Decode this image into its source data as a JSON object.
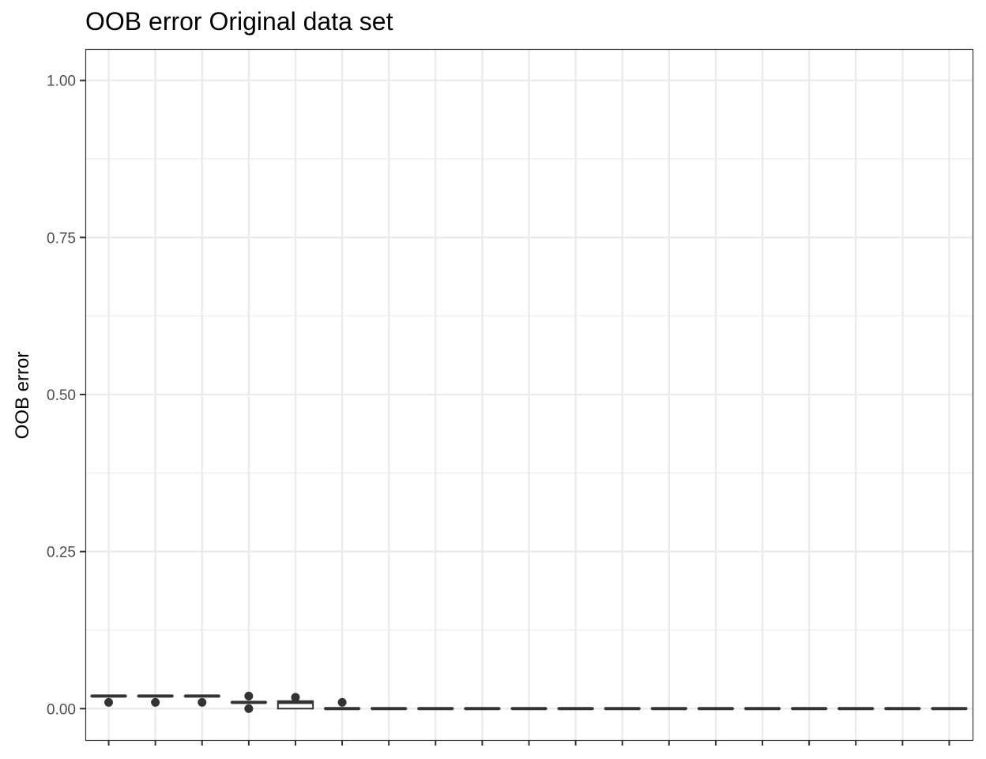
{
  "chart_data": {
    "type": "boxplot",
    "title": "OOB error Original data set",
    "xlabel": "",
    "ylabel": "OOB error",
    "ylim": [
      -0.05,
      1.05
    ],
    "y_ticks": [
      0.0,
      0.25,
      0.5,
      0.75,
      1.0
    ],
    "y_tick_labels": [
      "0.00",
      "0.25",
      "0.50",
      "0.75",
      "1.00"
    ],
    "y_minor_ticks": [
      0.125,
      0.375,
      0.625,
      0.875
    ],
    "grid": true,
    "x_tick_labels_shown": false,
    "category_count": 19,
    "boxes": [
      {
        "q1": 0.02,
        "median": 0.02,
        "q3": 0.02,
        "whisker_low": 0.02,
        "whisker_high": 0.02,
        "outliers": [
          0.01
        ]
      },
      {
        "q1": 0.02,
        "median": 0.02,
        "q3": 0.02,
        "whisker_low": 0.02,
        "whisker_high": 0.02,
        "outliers": [
          0.01
        ]
      },
      {
        "q1": 0.02,
        "median": 0.02,
        "q3": 0.02,
        "whisker_low": 0.02,
        "whisker_high": 0.02,
        "outliers": [
          0.01
        ]
      },
      {
        "q1": 0.01,
        "median": 0.01,
        "q3": 0.01,
        "whisker_low": 0.01,
        "whisker_high": 0.01,
        "outliers": [
          0.0,
          0.02
        ]
      },
      {
        "q1": 0.0,
        "median": 0.01,
        "q3": 0.012,
        "whisker_low": 0.0,
        "whisker_high": 0.012,
        "outliers": [
          0.018
        ]
      },
      {
        "q1": 0.0,
        "median": 0.0,
        "q3": 0.0,
        "whisker_low": 0.0,
        "whisker_high": 0.0,
        "outliers": [
          0.01
        ]
      },
      {
        "q1": 0.0,
        "median": 0.0,
        "q3": 0.0,
        "whisker_low": 0.0,
        "whisker_high": 0.0,
        "outliers": []
      },
      {
        "q1": 0.0,
        "median": 0.0,
        "q3": 0.0,
        "whisker_low": 0.0,
        "whisker_high": 0.0,
        "outliers": []
      },
      {
        "q1": 0.0,
        "median": 0.0,
        "q3": 0.0,
        "whisker_low": 0.0,
        "whisker_high": 0.0,
        "outliers": []
      },
      {
        "q1": 0.0,
        "median": 0.0,
        "q3": 0.0,
        "whisker_low": 0.0,
        "whisker_high": 0.0,
        "outliers": []
      },
      {
        "q1": 0.0,
        "median": 0.0,
        "q3": 0.0,
        "whisker_low": 0.0,
        "whisker_high": 0.0,
        "outliers": []
      },
      {
        "q1": 0.0,
        "median": 0.0,
        "q3": 0.0,
        "whisker_low": 0.0,
        "whisker_high": 0.0,
        "outliers": []
      },
      {
        "q1": 0.0,
        "median": 0.0,
        "q3": 0.0,
        "whisker_low": 0.0,
        "whisker_high": 0.0,
        "outliers": []
      },
      {
        "q1": 0.0,
        "median": 0.0,
        "q3": 0.0,
        "whisker_low": 0.0,
        "whisker_high": 0.0,
        "outliers": []
      },
      {
        "q1": 0.0,
        "median": 0.0,
        "q3": 0.0,
        "whisker_low": 0.0,
        "whisker_high": 0.0,
        "outliers": []
      },
      {
        "q1": 0.0,
        "median": 0.0,
        "q3": 0.0,
        "whisker_low": 0.0,
        "whisker_high": 0.0,
        "outliers": []
      },
      {
        "q1": 0.0,
        "median": 0.0,
        "q3": 0.0,
        "whisker_low": 0.0,
        "whisker_high": 0.0,
        "outliers": []
      },
      {
        "q1": 0.0,
        "median": 0.0,
        "q3": 0.0,
        "whisker_low": 0.0,
        "whisker_high": 0.0,
        "outliers": []
      },
      {
        "q1": 0.0,
        "median": 0.0,
        "q3": 0.0,
        "whisker_low": 0.0,
        "whisker_high": 0.0,
        "outliers": []
      }
    ],
    "colors": {
      "box_fill": "#ffffff",
      "box_stroke": "#333333",
      "grid": "#ebebeb",
      "panel_border": "#333333",
      "tick_label": "#4d4d4d"
    }
  }
}
